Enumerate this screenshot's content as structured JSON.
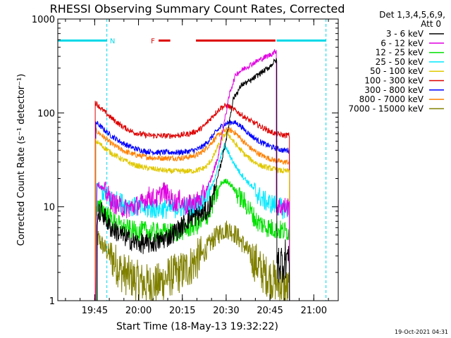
{
  "chart_data": {
    "type": "line",
    "title": "RHESSI Observing Summary Count Rates, Corrected",
    "xlabel": "Start Time (18-May-13 19:32:22)",
    "ylabel": "Corrected Count Rate (s⁻¹ detector⁻¹)",
    "yscale": "log",
    "ylim": [
      1,
      1000
    ],
    "xlim_minutes": [
      0,
      96
    ],
    "x_ticks": [
      {
        "label": "19:45",
        "min": 12.63
      },
      {
        "label": "20:00",
        "min": 27.63
      },
      {
        "label": "20:15",
        "min": 42.63
      },
      {
        "label": "20:30",
        "min": 57.63
      },
      {
        "label": "20:45",
        "min": 72.63
      },
      {
        "label": "21:00",
        "min": 87.63
      }
    ],
    "y_ticks": [
      {
        "label": "1",
        "value": 1
      },
      {
        "label": "10",
        "value": 10
      },
      {
        "label": "100",
        "value": 100
      },
      {
        "label": "1000",
        "value": 1000
      }
    ],
    "legend_header": [
      "Det 1,3,4,5,6,9,",
      "Att 0"
    ],
    "flags": [
      {
        "label": "N",
        "color": "#00d8e8",
        "value": 750,
        "segments": [
          [
            0,
            16.8
          ],
          [
            74.9,
            91.8
          ]
        ],
        "dashed_lines": [
          16.8,
          91.8
        ]
      },
      {
        "label": "F",
        "color": "#dd0000",
        "value": 750,
        "segments": [
          [
            34.5,
            38.5
          ],
          [
            47.3,
            74.5
          ]
        ]
      }
    ],
    "series": [
      {
        "name": "3 - 6 keV",
        "color": "#000000",
        "start": 13.5,
        "end": 75.0,
        "points": [
          [
            13.5,
            8
          ],
          [
            15,
            9
          ],
          [
            18,
            6
          ],
          [
            22,
            5
          ],
          [
            26,
            4.2
          ],
          [
            30,
            4
          ],
          [
            34,
            4.2
          ],
          [
            38,
            4.8
          ],
          [
            42,
            6
          ],
          [
            45,
            7.5
          ],
          [
            48,
            8
          ],
          [
            51,
            9
          ],
          [
            53,
            12
          ],
          [
            56,
            30
          ],
          [
            58,
            60
          ],
          [
            60,
            140
          ],
          [
            63,
            200
          ],
          [
            66,
            220
          ],
          [
            69,
            260
          ],
          [
            72,
            300
          ],
          [
            74.5,
            360
          ],
          [
            75,
            360
          ]
        ],
        "tail_end": 79.3,
        "tail": [
          [
            75,
            2.5
          ],
          [
            77,
            2.6
          ],
          [
            78.5,
            3
          ],
          [
            79.3,
            3
          ]
        ]
      },
      {
        "name": "6 - 12 keV",
        "color": "#e000e0",
        "start": 13.0,
        "end": 74.8,
        "points": [
          [
            13,
            1
          ],
          [
            13.4,
            18
          ],
          [
            16,
            15
          ],
          [
            19,
            11
          ],
          [
            23,
            9.5
          ],
          [
            26,
            10
          ],
          [
            29,
            11
          ],
          [
            31,
            13
          ],
          [
            34,
            12
          ],
          [
            36,
            15
          ],
          [
            38,
            13
          ],
          [
            40,
            11
          ],
          [
            42,
            12
          ],
          [
            44,
            10
          ],
          [
            46,
            11
          ],
          [
            49,
            12
          ],
          [
            52,
            18
          ],
          [
            55,
            35
          ],
          [
            57,
            80
          ],
          [
            59,
            170
          ],
          [
            61,
            260
          ],
          [
            64,
            300
          ],
          [
            67,
            340
          ],
          [
            70,
            380
          ],
          [
            73,
            420
          ],
          [
            74.8,
            460
          ]
        ],
        "tail_end": 79.3,
        "tail": [
          [
            74.8,
            10
          ],
          [
            77,
            10
          ],
          [
            79.3,
            10
          ]
        ]
      },
      {
        "name": "12 - 25 keV",
        "color": "#00e000",
        "start": 13.2,
        "end": 79.3,
        "points": [
          [
            13.2,
            10
          ],
          [
            16,
            9
          ],
          [
            19,
            7
          ],
          [
            22,
            6
          ],
          [
            26,
            5.5
          ],
          [
            30,
            5.5
          ],
          [
            34,
            5.3
          ],
          [
            38,
            5.3
          ],
          [
            42,
            5.5
          ],
          [
            45,
            6
          ],
          [
            48,
            6.5
          ],
          [
            50,
            7
          ],
          [
            52,
            9
          ],
          [
            54,
            13
          ],
          [
            56,
            18
          ],
          [
            58,
            19
          ],
          [
            60,
            16
          ],
          [
            62,
            13
          ],
          [
            64,
            11
          ],
          [
            66,
            9
          ],
          [
            68,
            7
          ],
          [
            70,
            6.5
          ],
          [
            72,
            6
          ],
          [
            74.5,
            5.8
          ],
          [
            77,
            5.5
          ],
          [
            79.3,
            5.5
          ]
        ]
      },
      {
        "name": "25 - 50 keV",
        "color": "#00e8ff",
        "start": 13.2,
        "end": 79.3,
        "points": [
          [
            13.2,
            18
          ],
          [
            15,
            15
          ],
          [
            18,
            12
          ],
          [
            22,
            11
          ],
          [
            26,
            10
          ],
          [
            30,
            9.5
          ],
          [
            34,
            9.5
          ],
          [
            38,
            9.5
          ],
          [
            42,
            9.8
          ],
          [
            46,
            10
          ],
          [
            49,
            11
          ],
          [
            51,
            13
          ],
          [
            53,
            17
          ],
          [
            55,
            28
          ],
          [
            57,
            45
          ],
          [
            58,
            40
          ],
          [
            60,
            30
          ],
          [
            62,
            24
          ],
          [
            64,
            20
          ],
          [
            66,
            17
          ],
          [
            68,
            14
          ],
          [
            70,
            12
          ],
          [
            72,
            11
          ],
          [
            74.5,
            10.5
          ],
          [
            77,
            9.5
          ],
          [
            79.3,
            9.5
          ]
        ]
      },
      {
        "name": "50 - 100 keV",
        "color": "#e0c800",
        "start": 13.0,
        "end": 79.3,
        "points": [
          [
            13,
            50
          ],
          [
            15,
            45
          ],
          [
            18,
            38
          ],
          [
            22,
            32
          ],
          [
            26,
            28
          ],
          [
            30,
            26
          ],
          [
            34,
            25
          ],
          [
            38,
            24
          ],
          [
            42,
            24
          ],
          [
            46,
            24
          ],
          [
            49,
            25
          ],
          [
            51,
            27
          ],
          [
            53,
            33
          ],
          [
            55,
            45
          ],
          [
            57,
            58
          ],
          [
            58,
            62
          ],
          [
            60,
            50
          ],
          [
            62,
            42
          ],
          [
            64,
            36
          ],
          [
            66,
            32
          ],
          [
            68,
            29
          ],
          [
            70,
            27
          ],
          [
            72,
            26
          ],
          [
            74.5,
            25
          ],
          [
            77,
            24
          ],
          [
            79.3,
            24
          ]
        ]
      },
      {
        "name": "100 - 300 keV",
        "color": "#dd0000",
        "start": 12.8,
        "end": 79.3,
        "points": [
          [
            12.8,
            130
          ],
          [
            15,
            110
          ],
          [
            18,
            90
          ],
          [
            22,
            72
          ],
          [
            26,
            62
          ],
          [
            30,
            58
          ],
          [
            34,
            57
          ],
          [
            38,
            57
          ],
          [
            42,
            58
          ],
          [
            45,
            60
          ],
          [
            48,
            65
          ],
          [
            50,
            72
          ],
          [
            52,
            85
          ],
          [
            54,
            100
          ],
          [
            56,
            115
          ],
          [
            58,
            120
          ],
          [
            60,
            110
          ],
          [
            62,
            100
          ],
          [
            64,
            90
          ],
          [
            66,
            82
          ],
          [
            68,
            76
          ],
          [
            70,
            70
          ],
          [
            72,
            65
          ],
          [
            74.5,
            60
          ],
          [
            77,
            58
          ],
          [
            79.3,
            58
          ]
        ]
      },
      {
        "name": "300 - 800 keV",
        "color": "#0000ff",
        "start": 13.0,
        "end": 79.3,
        "points": [
          [
            13,
            80
          ],
          [
            15,
            70
          ],
          [
            18,
            58
          ],
          [
            22,
            48
          ],
          [
            26,
            42
          ],
          [
            30,
            39
          ],
          [
            34,
            38
          ],
          [
            38,
            38
          ],
          [
            42,
            38
          ],
          [
            45,
            39
          ],
          [
            48,
            41
          ],
          [
            50,
            45
          ],
          [
            52,
            52
          ],
          [
            54,
            62
          ],
          [
            56,
            72
          ],
          [
            58,
            78
          ],
          [
            60,
            80
          ],
          [
            62,
            75
          ],
          [
            64,
            66
          ],
          [
            66,
            58
          ],
          [
            68,
            52
          ],
          [
            70,
            48
          ],
          [
            72,
            45
          ],
          [
            74.5,
            42
          ],
          [
            77,
            40
          ],
          [
            79.3,
            40
          ]
        ]
      },
      {
        "name": "800 - 7000 keV",
        "color": "#ff8000",
        "start": 12.9,
        "end": 79.3,
        "points": [
          [
            12.9,
            65
          ],
          [
            15,
            58
          ],
          [
            18,
            48
          ],
          [
            22,
            40
          ],
          [
            26,
            36
          ],
          [
            30,
            34
          ],
          [
            34,
            33
          ],
          [
            38,
            33
          ],
          [
            42,
            33
          ],
          [
            45,
            34
          ],
          [
            48,
            36
          ],
          [
            50,
            40
          ],
          [
            52,
            46
          ],
          [
            54,
            54
          ],
          [
            56,
            62
          ],
          [
            58,
            66
          ],
          [
            60,
            64
          ],
          [
            62,
            56
          ],
          [
            64,
            48
          ],
          [
            66,
            42
          ],
          [
            68,
            38
          ],
          [
            70,
            35
          ],
          [
            72,
            33
          ],
          [
            74.5,
            31
          ],
          [
            77,
            30
          ],
          [
            79.3,
            30
          ]
        ]
      },
      {
        "name": "7000 - 15000 keV",
        "color": "#808000",
        "start": 13.0,
        "end": 79.3,
        "points": [
          [
            13,
            5
          ],
          [
            15,
            4
          ],
          [
            18,
            3
          ],
          [
            22,
            2
          ],
          [
            26,
            1.7
          ],
          [
            30,
            1.5
          ],
          [
            34,
            1.5
          ],
          [
            38,
            1.8
          ],
          [
            42,
            2
          ],
          [
            45,
            2.3
          ],
          [
            48,
            2.8
          ],
          [
            50,
            3.2
          ],
          [
            52,
            4
          ],
          [
            54,
            4.8
          ],
          [
            56,
            5.5
          ],
          [
            58,
            5.8
          ],
          [
            60,
            5.4
          ],
          [
            62,
            4.6
          ],
          [
            64,
            3.8
          ],
          [
            66,
            3
          ],
          [
            68,
            2.5
          ],
          [
            70,
            2
          ],
          [
            72,
            1.8
          ],
          [
            74.5,
            1.6
          ],
          [
            77,
            1.4
          ],
          [
            79.3,
            1.3
          ]
        ]
      }
    ],
    "footer_date": "19-Oct-2021 04:31"
  }
}
